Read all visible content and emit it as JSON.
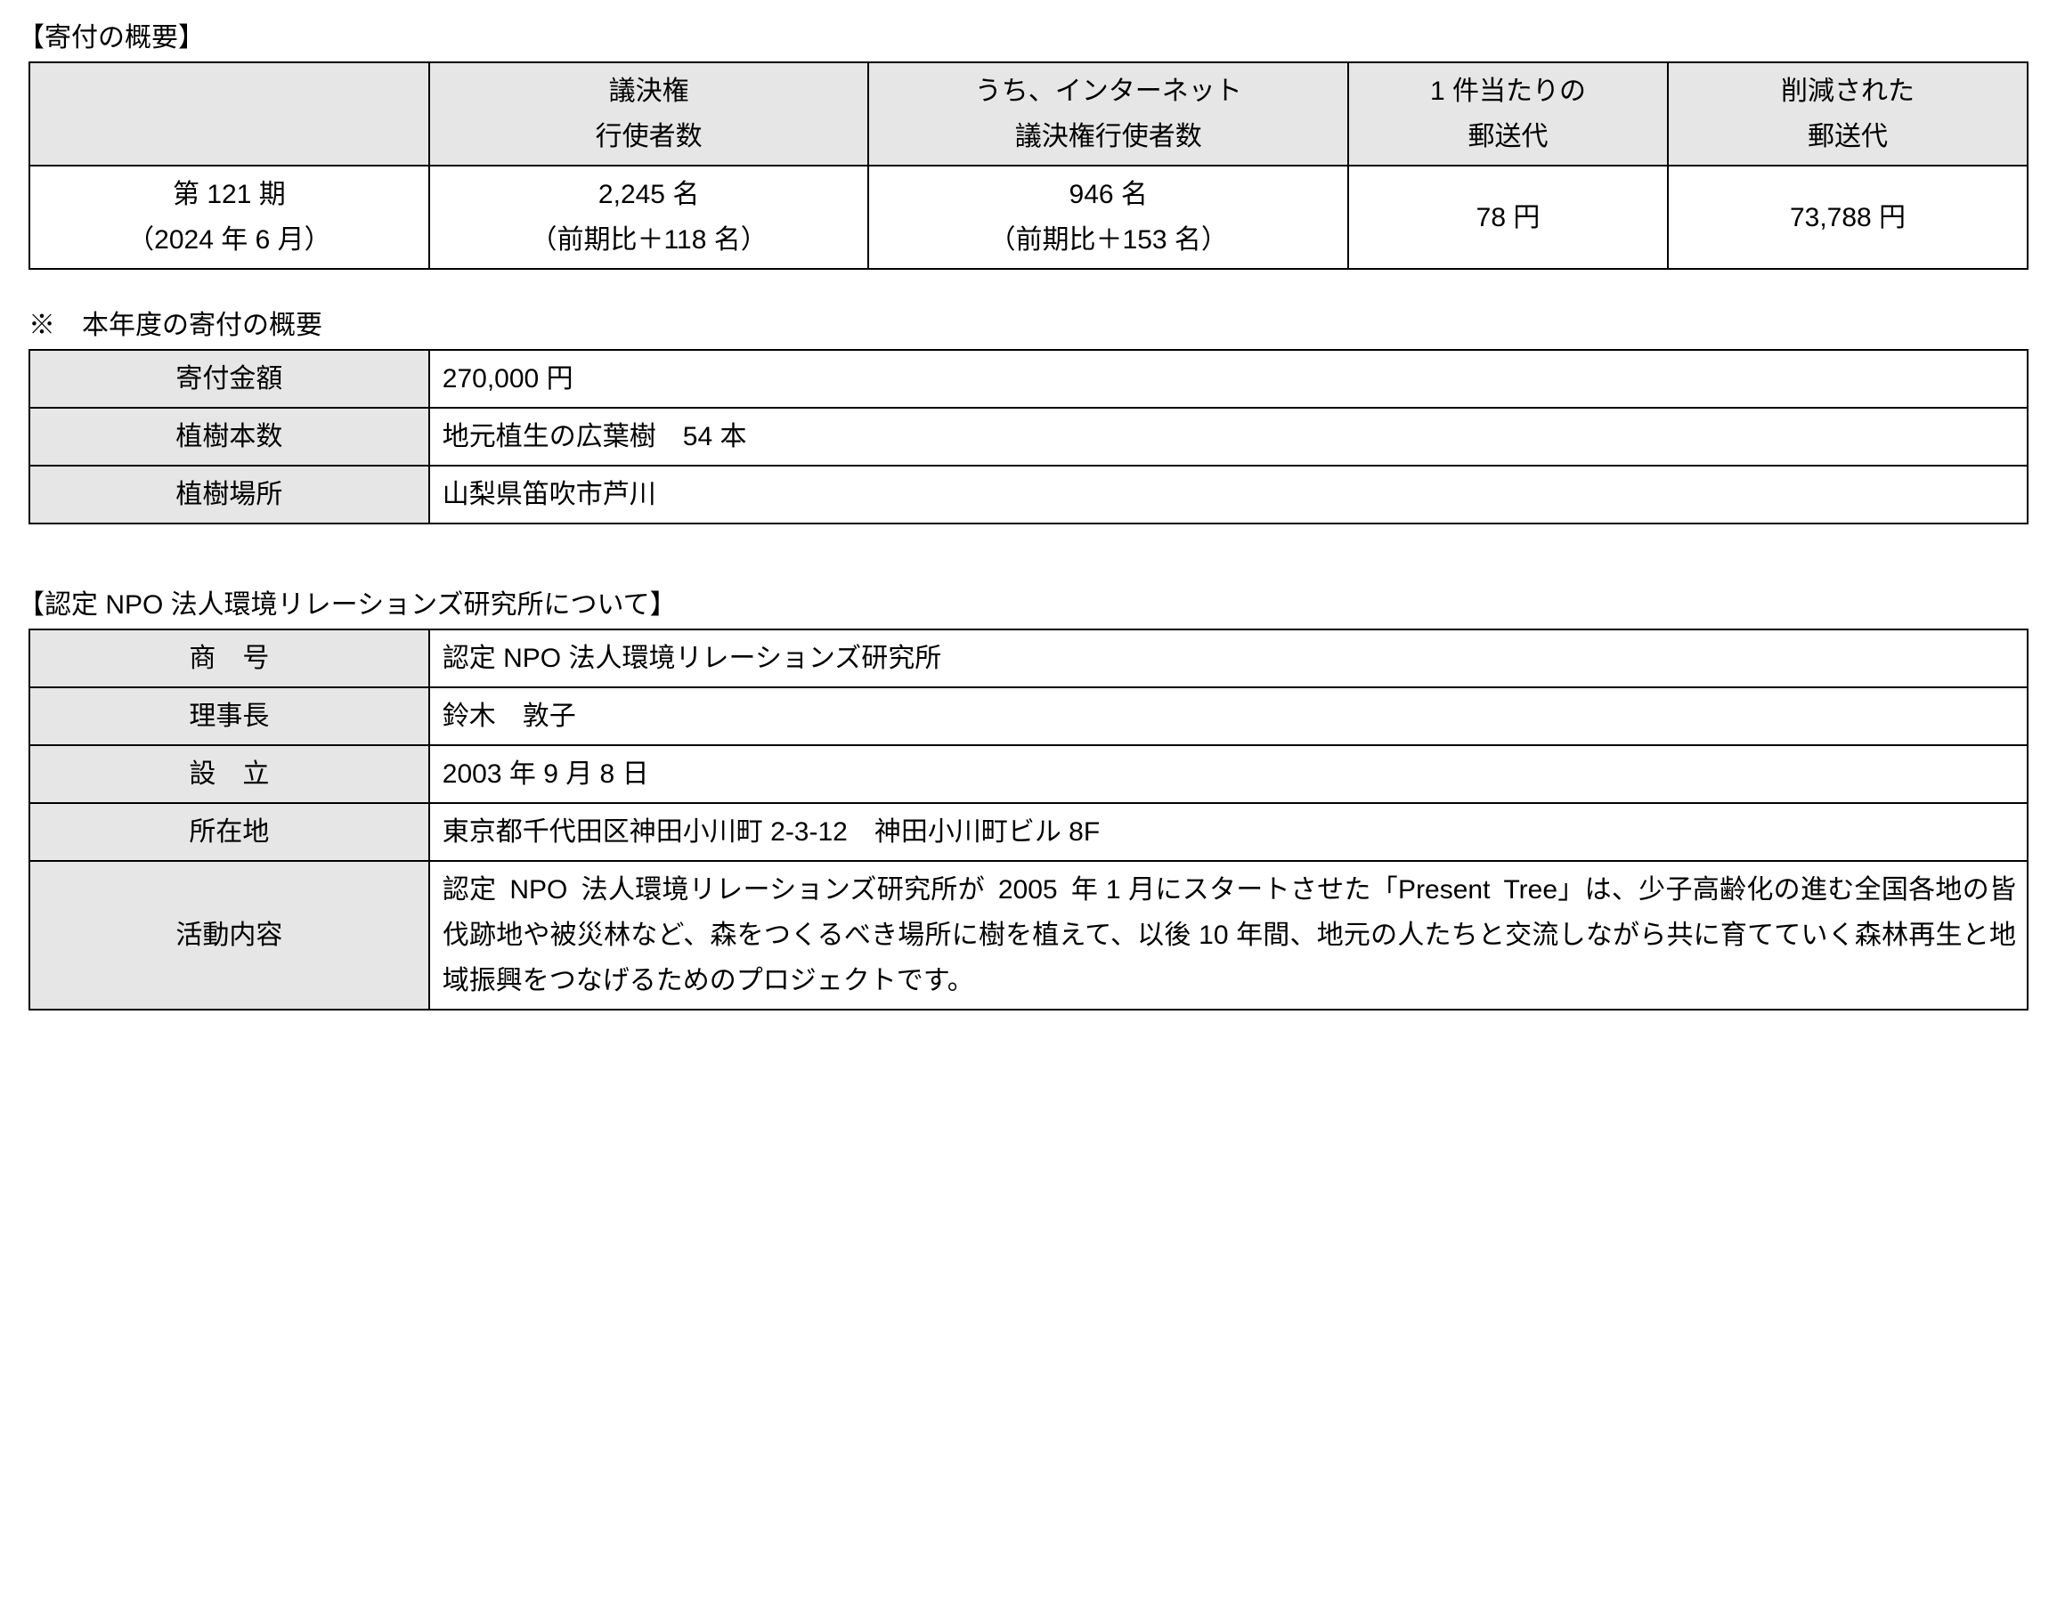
{
  "section1": {
    "heading": "【寄付の概要】",
    "table": {
      "header": {
        "c1": "",
        "c2": "議決権\n行使者数",
        "c3": "うち、インターネット\n議決権行使者数",
        "c4": "1 件当たりの\n郵送代",
        "c5": "削減された\n郵送代"
      },
      "row": {
        "c1": "第 121 期\n（2024 年 6 月）",
        "c2": "2,245 名\n（前期比＋118 名）",
        "c3": "946 名\n（前期比＋153 名）",
        "c4": "78 円",
        "c5": "73,788 円"
      }
    },
    "sub_heading": "※ 本年度の寄付の概要",
    "summary": {
      "rows": [
        {
          "label": "寄付金額",
          "value": "270,000 円"
        },
        {
          "label": "植樹本数",
          "value": "地元植生の広葉樹 54 本"
        },
        {
          "label": "植樹場所",
          "value": "山梨県笛吹市芦川"
        }
      ]
    }
  },
  "section2": {
    "heading": "【認定 NPO 法人環境リレーションズ研究所について】",
    "rows": [
      {
        "label": "商 号",
        "value": "認定 NPO 法人環境リレーションズ研究所"
      },
      {
        "label": "理事長",
        "value": "鈴木 敦子"
      },
      {
        "label": "設 立",
        "value": "2003 年 9 月 8 日"
      },
      {
        "label": "所在地",
        "value": "東京都千代田区神田小川町 2-3-12 神田小川町ビル 8F"
      },
      {
        "label": "活動内容",
        "value": "認定 NPO 法人環境リレーションズ研究所が 2005 年 1 月にスタートさせた「Present Tree」は、少子高齢化の進む全国各地の皆伐跡地や被災林など、森をつくるべき場所に樹を植えて、以後 10 年間、地元の人たちと交流しながら共に育てていく森林再生と地域振興をつなげるためのプロジェクトです。"
      }
    ]
  }
}
